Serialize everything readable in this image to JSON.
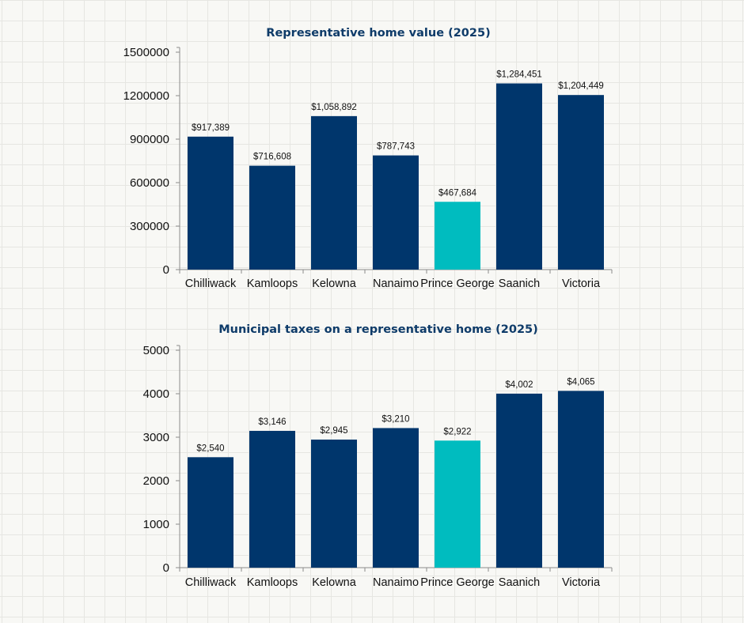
{
  "colors": {
    "bar_default": "#00366c",
    "bar_highlight": "#00bcbf"
  },
  "chart_data": [
    {
      "type": "bar",
      "title": "Representative home value (2025)",
      "categories": [
        "Chilliwack",
        "Kamloops",
        "Kelowna",
        "Nanaimo",
        "Prince George",
        "Saanich",
        "Victoria"
      ],
      "values": [
        917389,
        716608,
        1058892,
        787743,
        467684,
        1284451,
        1204449
      ],
      "data_labels": [
        "$917,389",
        "$716,608",
        "$1,058,892",
        "$787,743",
        "$467,684",
        "$1,284,451",
        "$1,204,449"
      ],
      "highlight": "Prince George",
      "ylim": [
        0,
        1500000
      ],
      "yticks": [
        0,
        300000,
        600000,
        900000,
        1200000,
        1500000
      ],
      "ytick_labels": [
        "0",
        "300000",
        "600000",
        "900000",
        "1200000",
        "1500000"
      ],
      "xlabel": "",
      "ylabel": "",
      "grid": false
    },
    {
      "type": "bar",
      "title": "Municipal taxes on a representative home (2025)",
      "categories": [
        "Chilliwack",
        "Kamloops",
        "Kelowna",
        "Nanaimo",
        "Prince George",
        "Saanich",
        "Victoria"
      ],
      "values": [
        2540,
        3146,
        2945,
        3210,
        2922,
        4002,
        4065
      ],
      "data_labels": [
        "$2,540",
        "$3,146",
        "$2,945",
        "$3,210",
        "$2,922",
        "$4,002",
        "$4,065"
      ],
      "highlight": "Prince George",
      "ylim": [
        0,
        5000
      ],
      "yticks": [
        0,
        1000,
        2000,
        3000,
        4000,
        5000
      ],
      "ytick_labels": [
        "0",
        "1000",
        "2000",
        "3000",
        "4000",
        "5000"
      ],
      "xlabel": "",
      "ylabel": "",
      "grid": false
    }
  ]
}
